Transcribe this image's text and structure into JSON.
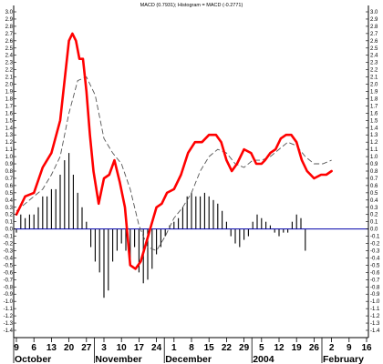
{
  "chart_data": {
    "type": "line",
    "title": "MACD (0.7931); Histogram = MACD (-0.2771)",
    "ylim": [
      -1.4,
      3.0
    ],
    "y_ticks": [
      3.0,
      2.9,
      2.8,
      2.7,
      2.6,
      2.5,
      2.4,
      2.3,
      2.2,
      2.1,
      2.0,
      1.9,
      1.8,
      1.7,
      1.6,
      1.5,
      1.4,
      1.3,
      1.2,
      1.1,
      1.0,
      0.9,
      0.8,
      0.7,
      0.6,
      0.5,
      0.4,
      0.3,
      0.2,
      0.1,
      0.0,
      -0.1,
      -0.2,
      -0.3,
      -0.4,
      -0.5,
      -0.6,
      -0.7,
      -0.8,
      -0.9,
      -1.0,
      -1.1,
      -1.2,
      -1.3,
      -1.4
    ],
    "x_tick_labels": [
      "9",
      "6",
      "13",
      "20",
      "27",
      "3",
      "10",
      "17",
      "24",
      "1",
      "8",
      "15",
      "22",
      "29",
      "5",
      "12",
      "19",
      "26",
      "2",
      "9",
      "16"
    ],
    "month_labels": [
      "October",
      "November",
      "December",
      "2004",
      "February"
    ],
    "zero_line": 0,
    "grid": false,
    "colors": {
      "macd": "#ff0000",
      "signal": "#555555",
      "histogram": "#000000",
      "zero_line": "#0000aa"
    },
    "series": [
      {
        "kind": "macd",
        "x": [
          0,
          0.5,
          1,
          1.5,
          2,
          2.5,
          3,
          3.2,
          3.4,
          3.6,
          3.8,
          4,
          4.2,
          4.4,
          4.7,
          5,
          5.3,
          5.6,
          5.9,
          6.2,
          6.5,
          6.8,
          7.1,
          7.4,
          7.7,
          8,
          8.3,
          8.6,
          9,
          9.4,
          9.8,
          10.2,
          10.6,
          11,
          11.2,
          11.4,
          11.7,
          12,
          12.3,
          12.6,
          13,
          13.4,
          13.7,
          14,
          14.2,
          14.5,
          14.8,
          15.1,
          15.4,
          15.7,
          16,
          16.3,
          16.6,
          16.8,
          17,
          17.4,
          17.7,
          18
        ],
        "y": [
          0.2,
          0.45,
          0.5,
          0.85,
          1.05,
          1.5,
          2.6,
          2.7,
          2.6,
          2.35,
          2.35,
          1.9,
          1.3,
          0.8,
          0.35,
          0.7,
          0.75,
          0.95,
          0.65,
          0.3,
          -0.5,
          -0.55,
          -0.45,
          -0.2,
          0.05,
          0.3,
          0.35,
          0.5,
          0.55,
          0.75,
          1.05,
          1.2,
          1.2,
          1.3,
          1.3,
          1.3,
          1.2,
          0.95,
          0.8,
          0.9,
          1.1,
          1.05,
          0.9,
          0.9,
          0.95,
          1.05,
          1.1,
          1.25,
          1.3,
          1.3,
          1.2,
          0.95,
          0.8,
          0.75,
          0.7,
          0.75,
          0.75,
          0.8
        ]
      },
      {
        "kind": "signal",
        "x": [
          0,
          0.5,
          1,
          1.5,
          2,
          2.5,
          3,
          3.5,
          4,
          4.5,
          5,
          5.5,
          6,
          6.5,
          7,
          7.5,
          8,
          8.5,
          9,
          9.5,
          10,
          10.5,
          11,
          11.5,
          12,
          12.5,
          13,
          13.5,
          14,
          14.5,
          15,
          15.5,
          16,
          16.5,
          17,
          17.5,
          18
        ],
        "y": [
          0.25,
          0.35,
          0.45,
          0.55,
          0.75,
          1.0,
          1.6,
          2.05,
          2.1,
          1.85,
          1.25,
          1.05,
          0.9,
          0.55,
          0.05,
          -0.25,
          -0.3,
          -0.1,
          0.15,
          0.3,
          0.5,
          0.8,
          1.0,
          1.1,
          1.05,
          0.9,
          0.85,
          0.95,
          0.95,
          1.0,
          1.1,
          1.2,
          1.15,
          1.0,
          0.9,
          0.9,
          0.95
        ]
      },
      {
        "kind": "histogram",
        "x": [
          0,
          0.25,
          0.5,
          0.75,
          1,
          1.25,
          1.5,
          1.75,
          2,
          2.25,
          2.5,
          2.75,
          3,
          3.25,
          3.5,
          3.75,
          4,
          4.25,
          4.5,
          4.75,
          5,
          5.25,
          5.5,
          5.75,
          6,
          6.25,
          6.5,
          6.75,
          7,
          7.25,
          7.5,
          7.75,
          8,
          8.25,
          8.5,
          8.75,
          9,
          9.25,
          9.5,
          9.75,
          10,
          10.25,
          10.5,
          10.75,
          11,
          11.25,
          11.5,
          11.75,
          12,
          12.25,
          12.5,
          12.75,
          13,
          13.25,
          13.5,
          13.75,
          14,
          14.25,
          14.5,
          14.75,
          15,
          15.25,
          15.5,
          15.75,
          16,
          16.25,
          16.5
        ],
        "y": [
          -0.05,
          0.2,
          0.15,
          0.2,
          0.2,
          0.3,
          0.45,
          0.45,
          0.55,
          0.55,
          0.75,
          0.95,
          1.05,
          0.75,
          0.5,
          0.3,
          0.1,
          -0.25,
          -0.45,
          -0.6,
          -0.95,
          -0.85,
          -0.45,
          -0.3,
          -0.2,
          -0.3,
          -0.45,
          -0.25,
          -0.6,
          -0.75,
          -0.7,
          -0.55,
          -0.35,
          -0.25,
          -0.1,
          0.05,
          0.1,
          0.15,
          0.3,
          0.45,
          0.5,
          0.45,
          0.45,
          0.5,
          0.45,
          0.4,
          0.35,
          0.25,
          0.1,
          -0.1,
          -0.2,
          -0.25,
          -0.15,
          -0.1,
          0.1,
          0.2,
          0.15,
          0.1,
          0.05,
          -0.05,
          -0.1,
          -0.05,
          -0.05,
          0.1,
          0.2,
          0.15,
          -0.3
        ]
      }
    ]
  }
}
